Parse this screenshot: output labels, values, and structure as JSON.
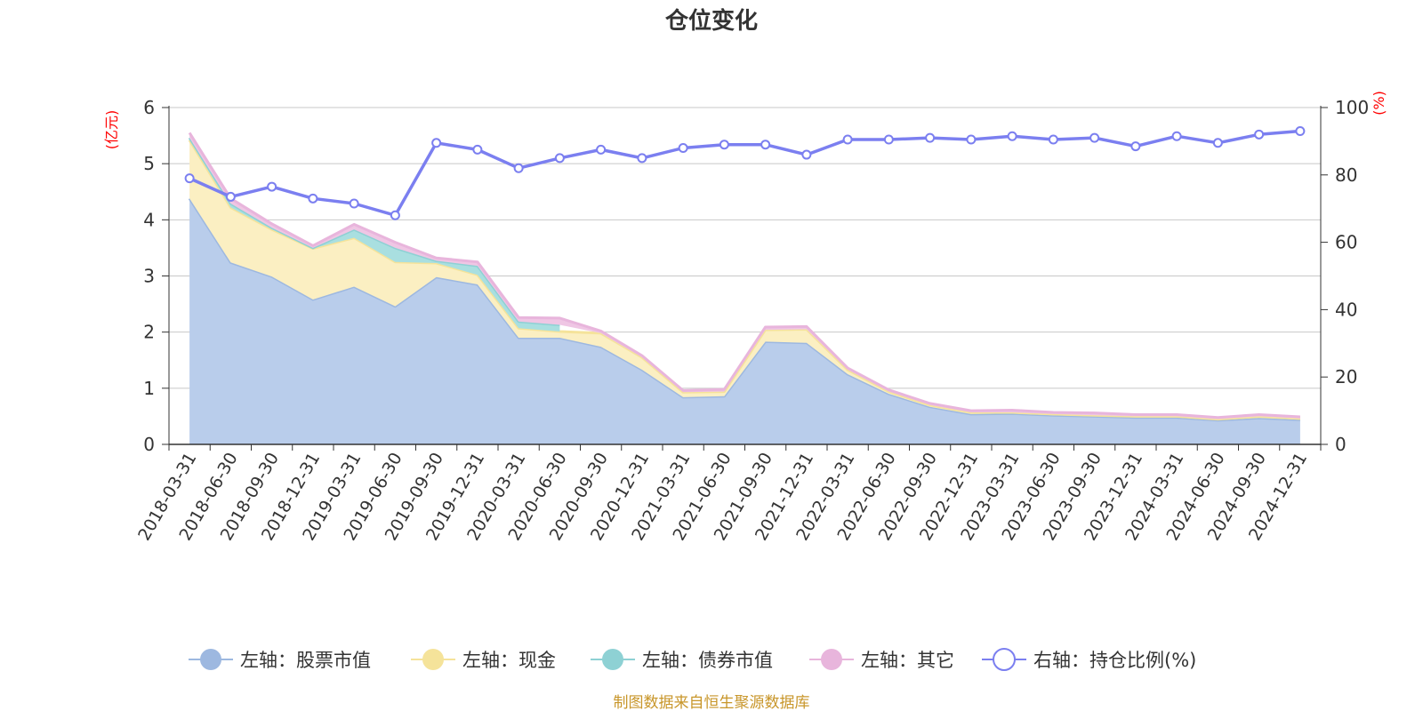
{
  "chart_data": {
    "type": "area",
    "title": "仓位变化",
    "left_axis": {
      "unit": "(亿元)",
      "ylim": [
        0,
        6
      ],
      "ticks": [
        "0",
        "1",
        "2",
        "3",
        "4",
        "5",
        "6"
      ]
    },
    "right_axis": {
      "unit": "(%)",
      "ylim": [
        0,
        100
      ],
      "ticks": [
        "0",
        "20",
        "40",
        "60",
        "80",
        "100"
      ]
    },
    "categories": [
      "2018-03-31",
      "2018-06-30",
      "2018-09-30",
      "2018-12-31",
      "2019-03-31",
      "2019-06-30",
      "2019-09-30",
      "2019-12-31",
      "2020-03-31",
      "2020-06-30",
      "2020-09-30",
      "2020-12-31",
      "2021-03-31",
      "2021-06-30",
      "2021-09-30",
      "2021-12-31",
      "2022-03-31",
      "2022-06-30",
      "2022-09-30",
      "2022-12-31",
      "2023-03-31",
      "2023-06-30",
      "2023-09-30",
      "2023-12-31",
      "2024-03-31",
      "2024-06-30",
      "2024-09-30",
      "2024-12-31"
    ],
    "series": [
      {
        "name": "左轴：股票市值",
        "axis": "left",
        "type": "area",
        "color": "#9db8e0",
        "fill": "#b9cdeb",
        "values": [
          4.38,
          3.24,
          2.99,
          2.58,
          2.81,
          2.46,
          2.98,
          2.85,
          1.9,
          1.9,
          1.74,
          1.33,
          0.84,
          0.86,
          1.83,
          1.81,
          1.25,
          0.9,
          0.67,
          0.54,
          0.55,
          0.52,
          0.5,
          0.48,
          0.48,
          0.43,
          0.47,
          0.44
        ]
      },
      {
        "name": "左轴：现金",
        "axis": "left",
        "type": "area",
        "color": "#f5e39a",
        "fill": "#fbefc2",
        "values": [
          1.04,
          0.98,
          0.84,
          0.91,
          0.87,
          0.79,
          0.25,
          0.17,
          0.17,
          0.11,
          0.24,
          0.22,
          0.09,
          0.08,
          0.21,
          0.24,
          0.08,
          0.04,
          0.03,
          0.03,
          0.02,
          0.02,
          0.02,
          0.02,
          0.02,
          0.02,
          0.03,
          0.02
        ]
      },
      {
        "name": "左轴：债券市值",
        "axis": "left",
        "type": "area",
        "color": "#8ed1d4",
        "fill": "#a9dfe0",
        "values": [
          0.04,
          0.07,
          0.03,
          0.01,
          0.15,
          0.25,
          0.04,
          0.16,
          0.12,
          0.12,
          null,
          null,
          null,
          null,
          null,
          null,
          null,
          null,
          null,
          null,
          null,
          null,
          null,
          null,
          null,
          null,
          null,
          null
        ]
      },
      {
        "name": "左轴：其它",
        "axis": "left",
        "type": "area",
        "color": "#e8b5dc",
        "fill": "#efc6e4",
        "values": [
          0.09,
          0.09,
          0.07,
          0.04,
          0.09,
          0.1,
          0.05,
          0.07,
          0.07,
          0.12,
          0.04,
          0.03,
          0.03,
          0.04,
          0.05,
          0.05,
          0.03,
          0.03,
          0.03,
          0.03,
          0.04,
          0.03,
          0.04,
          0.03,
          0.03,
          0.03,
          0.03,
          0.03
        ]
      },
      {
        "name": "右轴：持仓比例(%)",
        "axis": "right",
        "type": "line",
        "color": "#7b7ff0",
        "values": [
          79.0,
          73.5,
          76.5,
          73.0,
          71.5,
          68.0,
          89.5,
          87.5,
          82.0,
          85.0,
          87.5,
          85.0,
          88.0,
          89.0,
          89.0,
          86.0,
          90.5,
          90.5,
          91.0,
          90.5,
          91.5,
          90.5,
          91.0,
          88.5,
          91.5,
          89.5,
          92.0,
          93.0
        ]
      }
    ],
    "grid": true,
    "legend": "bottom-center"
  },
  "footer": {
    "source": "制图数据来自恒生聚源数据库"
  }
}
